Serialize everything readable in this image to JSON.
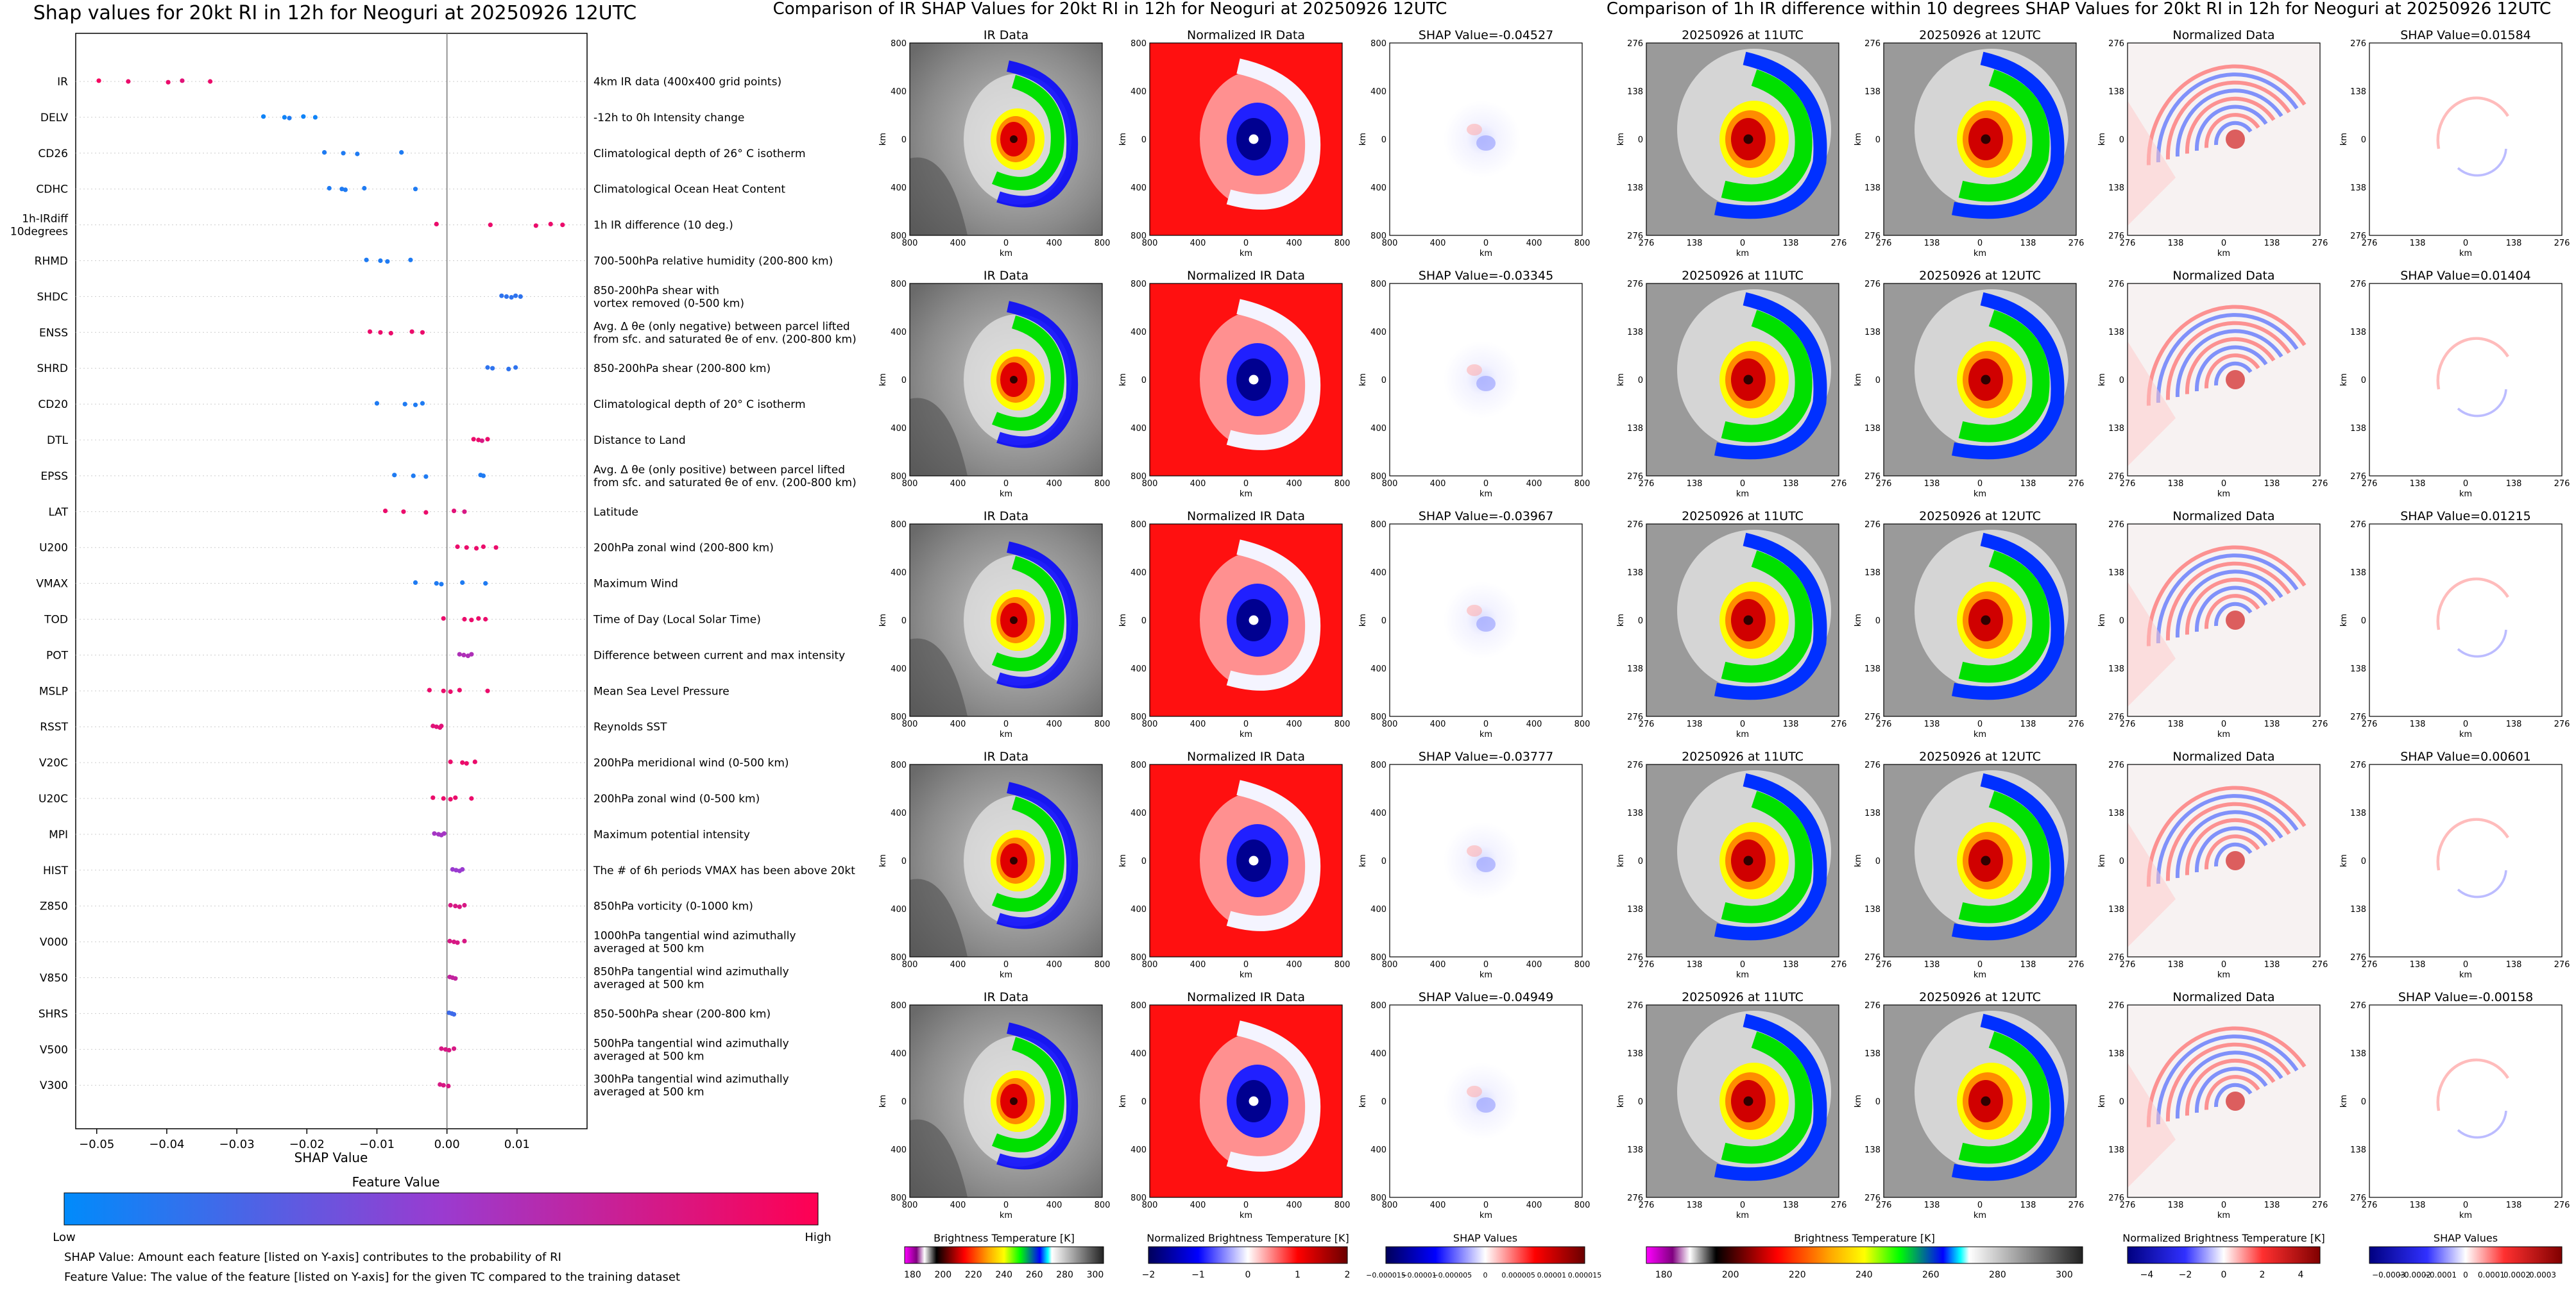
{
  "page": {
    "left_title": "Shap values for 20kt RI in 12h for Neoguri at 20250926 12UTC",
    "mid_title": "Comparison of IR SHAP Values for 20kt RI in 12h for Neoguri at 20250926 12UTC",
    "right_title": "Comparison of 1h IR difference within 10 degrees SHAP Values for 20kt RI in 12h for Neoguri at 20250926 12UTC",
    "feature_value_title": "Feature Value",
    "low_label": "Low",
    "high_label": "High",
    "note1": "SHAP Value: Amount each feature [listed on Y-axis] contributes to the probability of RI",
    "note2": "Feature Value: The value of the feature [listed on Y-axis] for the given TC compared to the training dataset",
    "colors": {
      "low": "#1e88e5",
      "mid": "#9c27b0",
      "high": "#ff0d57"
    }
  },
  "chart_data": [
    {
      "type": "scatter",
      "title": "Shap values for 20kt RI in 12h for Neoguri at 20250926 12UTC",
      "xlabel": "SHAP Value",
      "xlim": [
        -0.053,
        0.02
      ],
      "xticks": [
        -0.05,
        -0.04,
        -0.03,
        -0.02,
        -0.01,
        0.0,
        0.01
      ],
      "xtick_labels": [
        "−0.05",
        "−0.04",
        "−0.03",
        "−0.02",
        "−0.01",
        "0.00",
        "0.01"
      ],
      "features": [
        {
          "name": "IR",
          "desc": [
            "4km IR data (400x400 grid points)"
          ],
          "points": [
            [
              -0.0497,
              0.95
            ],
            [
              -0.0455,
              0.9
            ],
            [
              -0.0398,
              0.9
            ],
            [
              -0.0378,
              0.85
            ],
            [
              -0.0338,
              0.9
            ]
          ]
        },
        {
          "name": "DELV",
          "desc": [
            "-12h to 0h Intensity change"
          ],
          "points": [
            [
              -0.0262,
              0.05
            ],
            [
              -0.0232,
              0.05
            ],
            [
              -0.0225,
              0.1
            ],
            [
              -0.0205,
              0.05
            ],
            [
              -0.0188,
              0.05
            ]
          ]
        },
        {
          "name": "CD26",
          "desc": [
            "Climatological depth of 26° C isotherm"
          ],
          "points": [
            [
              -0.0175,
              0.1
            ],
            [
              -0.0148,
              0.1
            ],
            [
              -0.0128,
              0.1
            ],
            [
              -0.0065,
              0.1
            ]
          ]
        },
        {
          "name": "CDHC",
          "desc": [
            "Climatological Ocean Heat Content"
          ],
          "points": [
            [
              -0.0168,
              0.1
            ],
            [
              -0.015,
              0.1
            ],
            [
              -0.0145,
              0.1
            ],
            [
              -0.0118,
              0.1
            ],
            [
              -0.0045,
              0.1
            ]
          ]
        },
        {
          "name": "1h-IRdiff\n10degrees",
          "desc": [
            "1h IR difference (10 deg.)"
          ],
          "points": [
            [
              -0.0015,
              0.9
            ],
            [
              0.0062,
              0.9
            ],
            [
              0.0127,
              0.9
            ],
            [
              0.0148,
              0.9
            ],
            [
              0.0165,
              0.9
            ]
          ]
        },
        {
          "name": "RHMD",
          "desc": [
            "700-500hPa relative humidity (200-800 km)"
          ],
          "points": [
            [
              -0.0115,
              0.1
            ],
            [
              -0.0095,
              0.1
            ],
            [
              -0.0085,
              0.1
            ],
            [
              -0.0052,
              0.1
            ]
          ]
        },
        {
          "name": "SHDC",
          "desc": [
            "850-200hPa shear with",
            "vortex removed (0-500 km)"
          ],
          "points": [
            [
              0.0078,
              0.15
            ],
            [
              0.0085,
              0.15
            ],
            [
              0.0092,
              0.15
            ],
            [
              0.0098,
              0.15
            ],
            [
              0.0105,
              0.15
            ]
          ]
        },
        {
          "name": "ENSS",
          "desc": [
            "Avg. Δ θe (only negative) between parcel lifted",
            "from sfc. and saturated θe of env. (200-800 km)"
          ],
          "points": [
            [
              -0.011,
              0.9
            ],
            [
              -0.0095,
              0.9
            ],
            [
              -0.008,
              0.9
            ],
            [
              -0.005,
              0.9
            ],
            [
              -0.0035,
              0.9
            ]
          ]
        },
        {
          "name": "SHRD",
          "desc": [
            "850-200hPa shear (200-800 km)"
          ],
          "points": [
            [
              0.0058,
              0.15
            ],
            [
              0.0065,
              0.15
            ],
            [
              0.0088,
              0.15
            ],
            [
              0.0098,
              0.15
            ]
          ]
        },
        {
          "name": "CD20",
          "desc": [
            "Climatological depth of 20° C isotherm"
          ],
          "points": [
            [
              -0.01,
              0.1
            ],
            [
              -0.006,
              0.1
            ],
            [
              -0.0045,
              0.1
            ],
            [
              -0.0035,
              0.1
            ]
          ]
        },
        {
          "name": "DTL",
          "desc": [
            "Distance to Land"
          ],
          "points": [
            [
              0.0038,
              0.9
            ],
            [
              0.0045,
              0.9
            ],
            [
              0.005,
              0.8
            ],
            [
              0.0058,
              0.9
            ]
          ]
        },
        {
          "name": "EPSS",
          "desc": [
            "Avg. Δ θe (only positive) between parcel lifted",
            "from sfc. and saturated θe of env. (200-800 km)"
          ],
          "points": [
            [
              -0.0075,
              0.1
            ],
            [
              -0.0048,
              0.1
            ],
            [
              -0.003,
              0.1
            ],
            [
              0.0048,
              0.1
            ],
            [
              0.0052,
              0.1
            ]
          ]
        },
        {
          "name": "LAT",
          "desc": [
            "Latitude"
          ],
          "points": [
            [
              -0.0088,
              0.9
            ],
            [
              -0.0062,
              0.9
            ],
            [
              -0.003,
              0.9
            ],
            [
              0.001,
              0.85
            ],
            [
              0.0025,
              0.8
            ]
          ]
        },
        {
          "name": "U200",
          "desc": [
            "200hPa zonal wind (200-800 km)"
          ],
          "points": [
            [
              0.0015,
              0.9
            ],
            [
              0.0028,
              0.9
            ],
            [
              0.0042,
              0.9
            ],
            [
              0.0052,
              0.9
            ],
            [
              0.007,
              0.9
            ]
          ]
        },
        {
          "name": "VMAX",
          "desc": [
            "Maximum Wind"
          ],
          "points": [
            [
              -0.0045,
              0.1
            ],
            [
              -0.0015,
              0.1
            ],
            [
              -0.0008,
              0.1
            ],
            [
              0.0022,
              0.1
            ],
            [
              0.0055,
              0.1
            ]
          ]
        },
        {
          "name": "TOD",
          "desc": [
            "Time of Day (Local Solar Time)"
          ],
          "points": [
            [
              -0.0005,
              0.9
            ],
            [
              0.0025,
              0.9
            ],
            [
              0.0035,
              0.9
            ],
            [
              0.0045,
              0.9
            ],
            [
              0.0055,
              0.9
            ]
          ]
        },
        {
          "name": "POT",
          "desc": [
            "Difference between current and max intensity"
          ],
          "points": [
            [
              0.0018,
              0.6
            ],
            [
              0.0024,
              0.6
            ],
            [
              0.003,
              0.6
            ],
            [
              0.0035,
              0.6
            ]
          ]
        },
        {
          "name": "MSLP",
          "desc": [
            "Mean Sea Level Pressure"
          ],
          "points": [
            [
              -0.0025,
              0.9
            ],
            [
              -0.0005,
              0.9
            ],
            [
              0.0005,
              0.9
            ],
            [
              0.0018,
              0.9
            ],
            [
              0.0058,
              0.9
            ]
          ]
        },
        {
          "name": "RSST",
          "desc": [
            "Reynolds SST"
          ],
          "points": [
            [
              -0.002,
              0.85
            ],
            [
              -0.0015,
              0.85
            ],
            [
              -0.001,
              0.85
            ],
            [
              -0.0008,
              0.85
            ]
          ]
        },
        {
          "name": "V20C",
          "desc": [
            "200hPa meridional wind (0-500 km)"
          ],
          "points": [
            [
              0.0005,
              0.9
            ],
            [
              0.0022,
              0.9
            ],
            [
              0.0028,
              0.9
            ],
            [
              0.004,
              0.9
            ]
          ]
        },
        {
          "name": "U20C",
          "desc": [
            "200hPa zonal wind (0-500 km)"
          ],
          "points": [
            [
              -0.002,
              0.9
            ],
            [
              -0.0005,
              0.9
            ],
            [
              0.0005,
              0.9
            ],
            [
              0.0012,
              0.9
            ],
            [
              0.0035,
              0.9
            ]
          ]
        },
        {
          "name": "MPI",
          "desc": [
            "Maximum potential intensity"
          ],
          "points": [
            [
              -0.0018,
              0.55
            ],
            [
              -0.0012,
              0.55
            ],
            [
              -0.0008,
              0.55
            ],
            [
              -0.0004,
              0.55
            ]
          ]
        },
        {
          "name": "HIST",
          "desc": [
            "The # of 6h periods VMAX has been above 20kt"
          ],
          "points": [
            [
              0.0008,
              0.5
            ],
            [
              0.0013,
              0.5
            ],
            [
              0.0018,
              0.5
            ],
            [
              0.0022,
              0.5
            ]
          ]
        },
        {
          "name": "Z850",
          "desc": [
            "850hPa vorticity (0-1000 km)"
          ],
          "points": [
            [
              0.0005,
              0.8
            ],
            [
              0.0012,
              0.8
            ],
            [
              0.0018,
              0.8
            ],
            [
              0.0025,
              0.8
            ]
          ]
        },
        {
          "name": "V000",
          "desc": [
            "1000hPa tangential wind azimuthally",
            "averaged at 500 km"
          ],
          "points": [
            [
              0.0004,
              0.8
            ],
            [
              0.001,
              0.8
            ],
            [
              0.0015,
              0.8
            ],
            [
              0.0025,
              0.8
            ]
          ]
        },
        {
          "name": "V850",
          "desc": [
            "850hPa tangential wind azimuthally",
            "averaged at 500 km"
          ],
          "points": [
            [
              0.0004,
              0.7
            ],
            [
              0.0008,
              0.7
            ],
            [
              0.0012,
              0.7
            ]
          ]
        },
        {
          "name": "SHRS",
          "desc": [
            "850-500hPa shear (200-800 km)"
          ],
          "points": [
            [
              0.0003,
              0.2
            ],
            [
              0.0007,
              0.2
            ],
            [
              0.001,
              0.2
            ]
          ]
        },
        {
          "name": "V500",
          "desc": [
            "500hPa tangential wind azimuthally",
            "averaged at 500 km"
          ],
          "points": [
            [
              -0.0008,
              0.8
            ],
            [
              -0.0002,
              0.8
            ],
            [
              0.0003,
              0.8
            ],
            [
              0.001,
              0.8
            ]
          ]
        },
        {
          "name": "V300",
          "desc": [
            "300hPa tangential wind azimuthally",
            "averaged at 500 km"
          ],
          "points": [
            [
              -0.001,
              0.8
            ],
            [
              -0.0005,
              0.8
            ],
            [
              0.0002,
              0.8
            ]
          ]
        }
      ]
    },
    {
      "type": "heatmap",
      "title": "Comparison of IR SHAP Values for 20kt RI in 12h for Neoguri at 20250926 12UTC",
      "xlabel": "km",
      "ylabel": "km",
      "tick_labels": [
        "800",
        "400",
        "0",
        "400",
        "800"
      ],
      "panel_titles": [
        "IR Data",
        "Normalized IR Data",
        "SHAP Value"
      ],
      "shap_values": [
        "-0.04527",
        "-0.03345",
        "-0.03967",
        "-0.03777",
        "-0.04949"
      ],
      "colorbars": [
        {
          "label": "Brightness Temperature [K]",
          "ticks": [
            "180",
            "200",
            "220",
            "240",
            "260",
            "280",
            "300"
          ]
        },
        {
          "label": "Normalized Brightness Temperature [K]",
          "ticks": [
            "−2",
            "−1",
            "0",
            "1",
            "2"
          ]
        },
        {
          "label": "SHAP Values",
          "ticks": [
            "−0.000015",
            "−0.00001",
            "−0.000005",
            "0",
            "0.000005",
            "0.00001",
            "0.000015"
          ]
        }
      ]
    },
    {
      "type": "heatmap",
      "title": "Comparison of 1h IR difference within 10 degrees SHAP Values for 20kt RI in 12h for Neoguri at 20250926 12UTC",
      "xlabel": "km",
      "ylabel": "km",
      "tick_labels": [
        "276",
        "138",
        "0",
        "138",
        "276"
      ],
      "panel_titles": [
        "20250926 at 11UTC",
        "20250926 at 12UTC",
        "Normalized Data",
        "SHAP Value"
      ],
      "shap_values": [
        "0.01584",
        "0.01404",
        "0.01215",
        "0.00601",
        "-0.00158"
      ],
      "colorbars": [
        {
          "label": "Brightness Temperature [K]",
          "ticks": [
            "180",
            "200",
            "220",
            "240",
            "260",
            "280",
            "300"
          ]
        },
        {
          "label": "Normalized Brightness Temperature [K]",
          "ticks": [
            "−4",
            "−2",
            "0",
            "2",
            "4"
          ]
        },
        {
          "label": "SHAP Values",
          "ticks": [
            "−0.0003",
            "−0.0002",
            "−0.0001",
            "0",
            "0.0001",
            "0.0002",
            "0.0003"
          ]
        }
      ]
    }
  ]
}
